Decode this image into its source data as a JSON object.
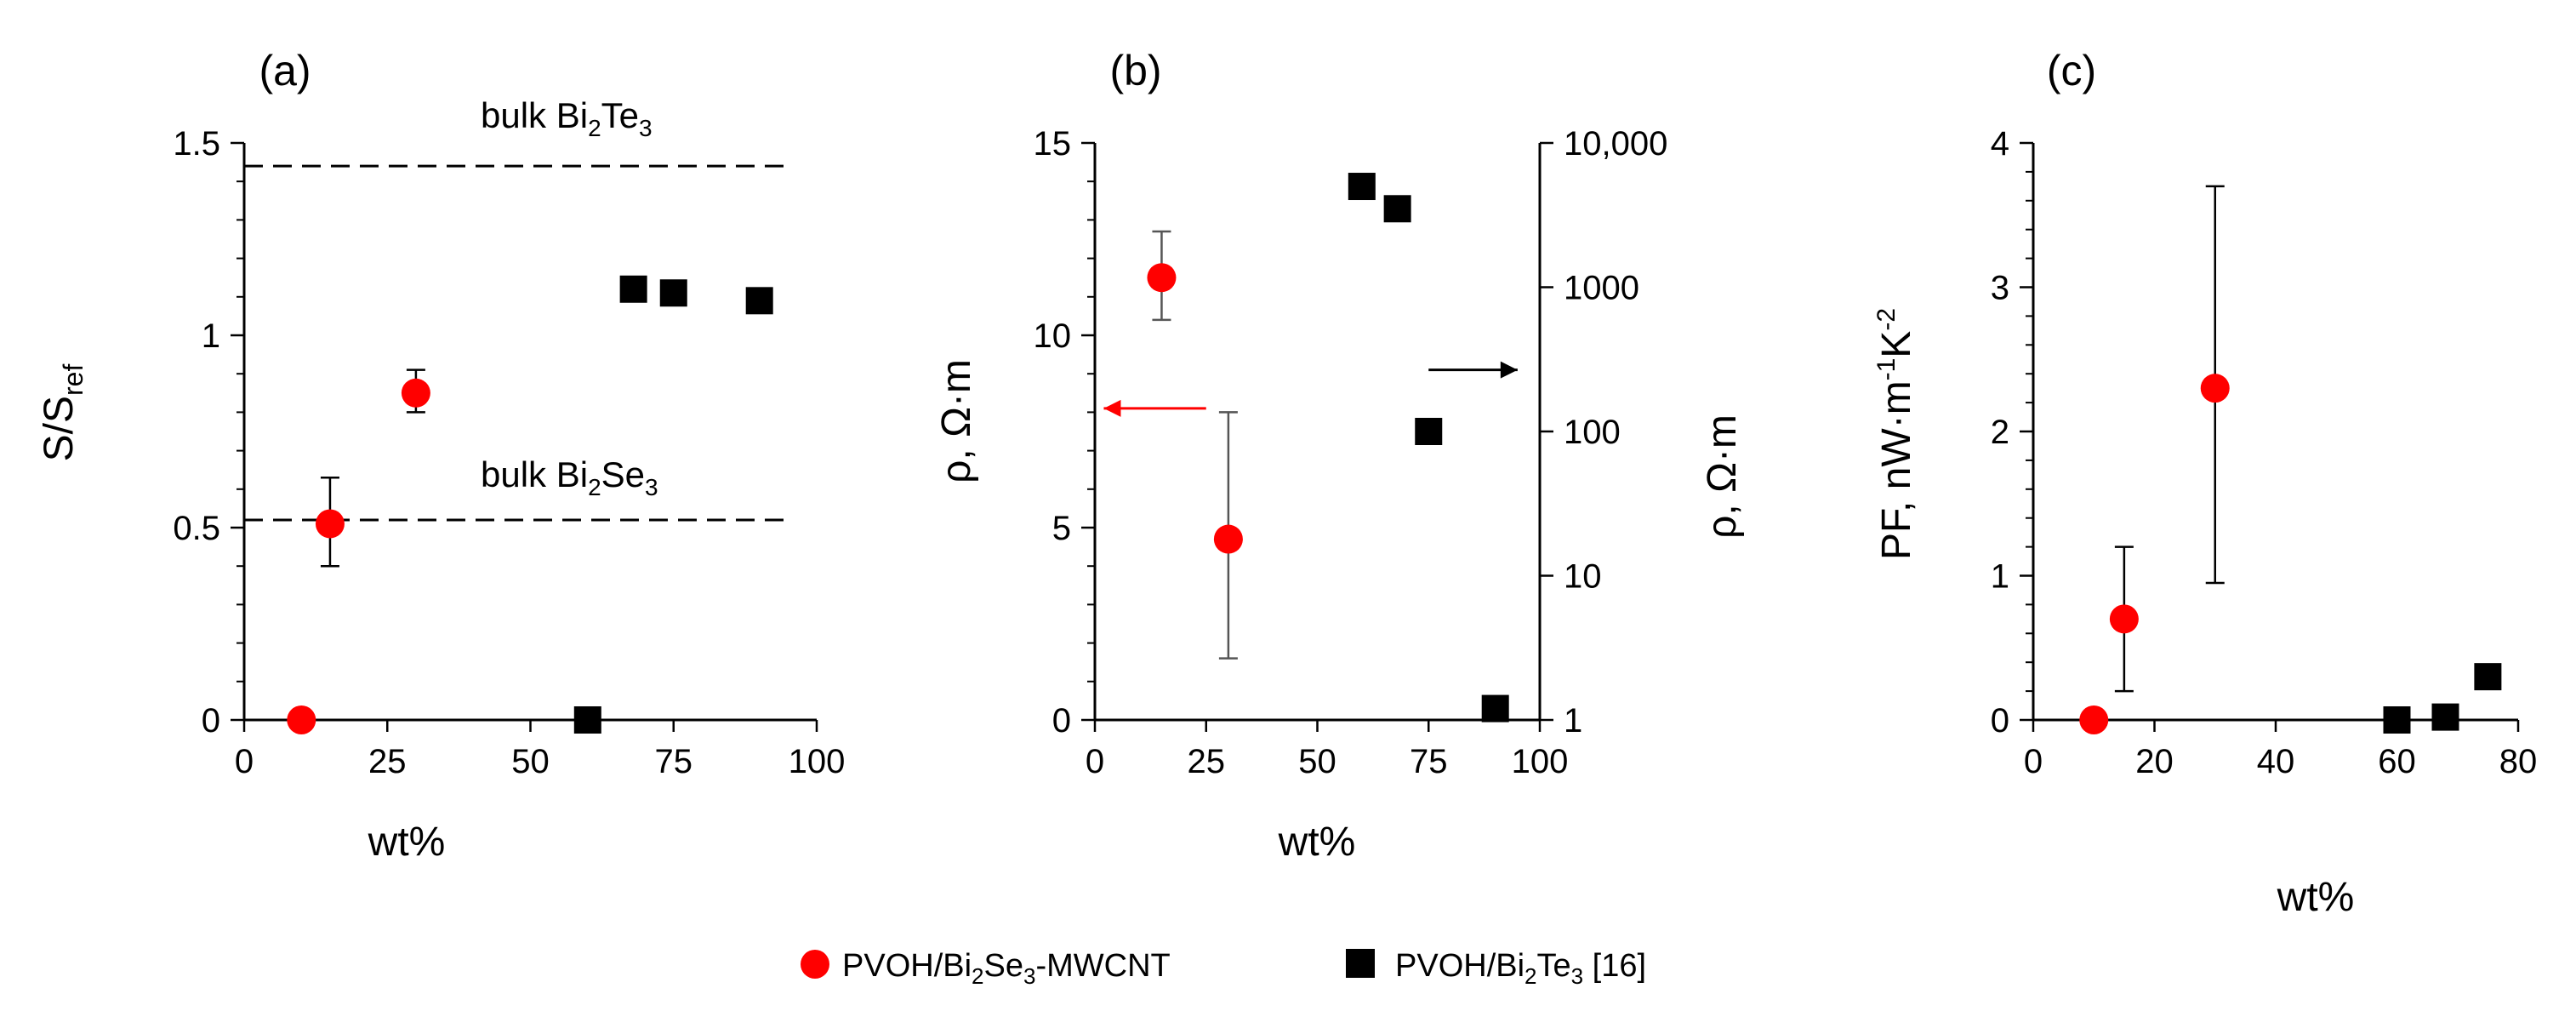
{
  "figure": {
    "legend": [
      {
        "label_main": "PVOH/Bi",
        "label_sub": "2",
        "label_after": "Se",
        "label_sub2": "3",
        "label_tail": "-MWCNT",
        "marker": "circle",
        "color": "#ff0000"
      },
      {
        "label_main": "PVOH/Bi",
        "label_sub": "2",
        "label_after": "Te",
        "label_sub2": "3",
        "label_tail": " [16]",
        "marker": "square",
        "color": "#000000"
      }
    ]
  },
  "chart_data": [
    {
      "panel": "(a)",
      "type": "scatter",
      "xlabel": "wt%",
      "ylabel_main": "S/S",
      "ylabel_sub": "ref",
      "xlim": [
        0,
        100
      ],
      "ylim": [
        0,
        1.5
      ],
      "xticks": [
        "0",
        "25",
        "50",
        "75",
        "100"
      ],
      "xtick_values": [
        0,
        25,
        50,
        75,
        100
      ],
      "yticks": [
        "0",
        "0.5",
        "1",
        "1.5"
      ],
      "ytick_values": [
        0,
        0.5,
        1,
        1.5
      ],
      "reference_lines": [
        {
          "y": 1.44,
          "label_main": "bulk Bi",
          "label_sub": "2",
          "label_after": "Te",
          "label_sub2": "3"
        },
        {
          "y": 0.52,
          "label_main": "bulk Bi",
          "label_sub": "2",
          "label_after": "Se",
          "label_sub2": "3"
        }
      ],
      "series": [
        {
          "name": "PVOH/Bi2Se3-MWCNT",
          "marker": "circle",
          "color": "#ff0000",
          "points": [
            {
              "x": 10,
              "y": 0.0
            },
            {
              "x": 15,
              "y": 0.51,
              "err_low": 0.4,
              "err_high": 0.63
            },
            {
              "x": 30,
              "y": 0.85,
              "err_low": 0.8,
              "err_high": 0.91
            }
          ]
        },
        {
          "name": "PVOH/Bi2Te3 [16]",
          "marker": "square",
          "color": "#000000",
          "points": [
            {
              "x": 60,
              "y": 0.0
            },
            {
              "x": 68,
              "y": 1.12
            },
            {
              "x": 75,
              "y": 1.11
            },
            {
              "x": 90,
              "y": 1.09
            }
          ]
        }
      ]
    },
    {
      "panel": "(b)",
      "type": "scatter",
      "xlabel": "wt%",
      "ylabel": "ρ, Ω·m",
      "ylabel_right": "ρ, Ω·m",
      "xlim": [
        0,
        100
      ],
      "ylim": [
        0,
        15
      ],
      "ylim_right_log": [
        1,
        10000
      ],
      "xticks": [
        "0",
        "25",
        "50",
        "75",
        "100"
      ],
      "xtick_values": [
        0,
        25,
        50,
        75,
        100
      ],
      "yticks": [
        "0",
        "5",
        "10",
        "15"
      ],
      "ytick_values": [
        0,
        5,
        10,
        15
      ],
      "yticks_right": [
        "1",
        "10",
        "100",
        "1000",
        "10,000"
      ],
      "ytick_values_right": [
        1,
        10,
        100,
        1000,
        10000
      ],
      "arrows": [
        {
          "direction": "left",
          "color": "#ff0000",
          "x_from": 25,
          "x_to": 2,
          "y": 8.1
        },
        {
          "direction": "right",
          "color": "#000000",
          "x_from": 75,
          "x_to": 95,
          "y": 9.1
        }
      ],
      "series": [
        {
          "name": "PVOH/Bi2Se3-MWCNT",
          "marker": "circle",
          "color": "#ff0000",
          "axis": "left",
          "points": [
            {
              "x": 15,
              "y": 11.5,
              "err_low": 10.4,
              "err_high": 12.7
            },
            {
              "x": 30,
              "y": 4.7,
              "err_low": 1.6,
              "err_high": 8.0
            }
          ]
        },
        {
          "name": "PVOH/Bi2Te3 [16]",
          "marker": "square",
          "color": "#000000",
          "axis": "right",
          "points": [
            {
              "x": 60,
              "y": 5000
            },
            {
              "x": 68,
              "y": 3500
            },
            {
              "x": 75,
              "y": 100
            },
            {
              "x": 90,
              "y": 1.2
            }
          ]
        }
      ]
    },
    {
      "panel": "(c)",
      "type": "scatter",
      "xlabel": "wt%",
      "ylabel_main": "PF, nW·m",
      "ylabel_sup1": "-1",
      "ylabel_mid": "K",
      "ylabel_sup2": "-2",
      "xlim": [
        0,
        80
      ],
      "ylim": [
        0,
        4
      ],
      "xticks": [
        "0",
        "20",
        "40",
        "60",
        "80"
      ],
      "xtick_values": [
        0,
        20,
        40,
        60,
        80
      ],
      "yticks": [
        "0",
        "1",
        "2",
        "3",
        "4"
      ],
      "ytick_values": [
        0,
        1,
        2,
        3,
        4
      ],
      "series": [
        {
          "name": "PVOH/Bi2Se3-MWCNT",
          "marker": "circle",
          "color": "#ff0000",
          "points": [
            {
              "x": 10,
              "y": 0.0
            },
            {
              "x": 15,
              "y": 0.7,
              "err_low": 0.2,
              "err_high": 1.2
            },
            {
              "x": 30,
              "y": 2.3,
              "err_low": 0.95,
              "err_high": 3.7
            }
          ]
        },
        {
          "name": "PVOH/Bi2Te3 [16]",
          "marker": "square",
          "color": "#000000",
          "points": [
            {
              "x": 60,
              "y": 0.0
            },
            {
              "x": 68,
              "y": 0.02
            },
            {
              "x": 75,
              "y": 0.3
            }
          ]
        }
      ]
    }
  ]
}
